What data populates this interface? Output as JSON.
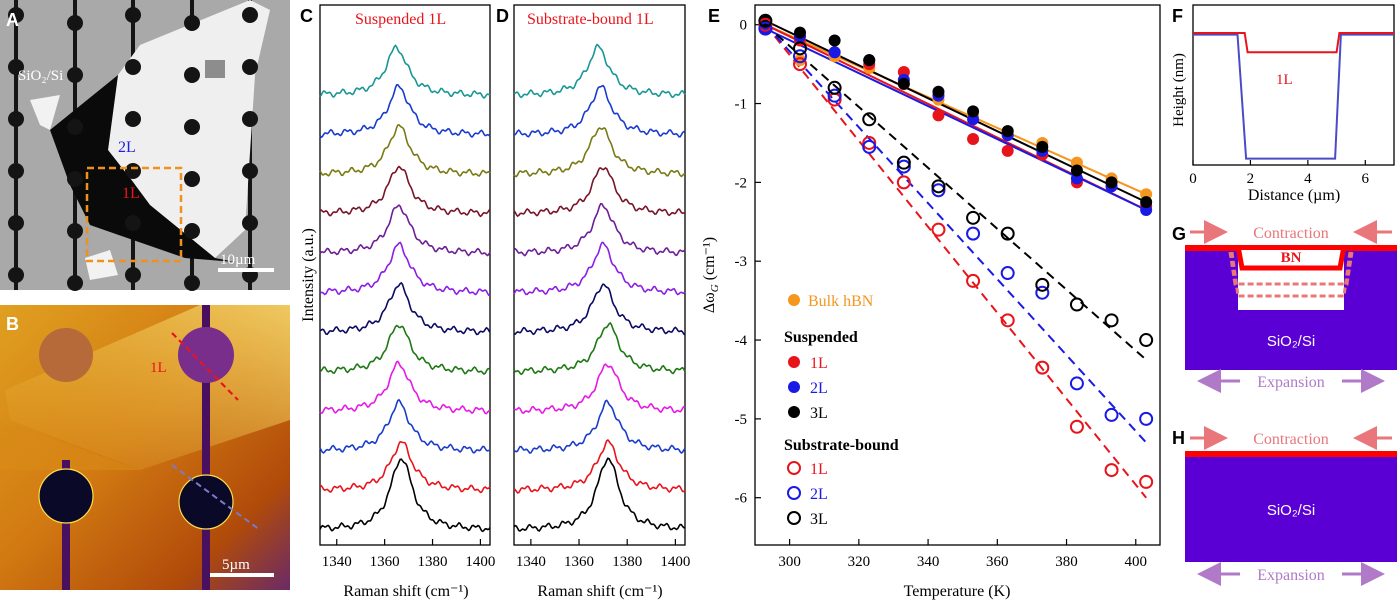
{
  "panels": {
    "A": {
      "letter": "A",
      "label_substrate": "SiO₂/Si",
      "label_2L": "2L",
      "label_1L": "1L",
      "scale": "10µm"
    },
    "B": {
      "letter": "B",
      "label_1L": "1L",
      "scale": "5µm"
    },
    "C": {
      "letter": "C",
      "title": "Suspended 1L"
    },
    "D": {
      "letter": "D",
      "title": "Substrate-bound 1L"
    },
    "E": {
      "letter": "E"
    },
    "F": {
      "letter": "F",
      "label_1L": "1L"
    },
    "G": {
      "letter": "G",
      "contraction": "Contraction",
      "bn": "BN",
      "substrate": "SiO₂/Si",
      "expansion": "Expansion"
    },
    "H": {
      "letter": "H",
      "contraction": "Contraction",
      "substrate": "SiO₂/Si",
      "expansion": "Expansion"
    }
  },
  "colors": {
    "suspended_1L": "#e8141c",
    "suspended_2L": "#1a1ae6",
    "suspended_3L": "#000000",
    "bulk": "#f5961e",
    "arrow": "#e8767a",
    "expansion_arrow": "#b07ac8",
    "substrate": "#5b00d4",
    "bn": "#ff0000"
  },
  "raman": {
    "ylabel": "Intensity (a.u.)",
    "xlabel": "Raman shift (cm⁻¹)",
    "xticks": [
      "1340",
      "1360",
      "1380",
      "1400"
    ],
    "xlim": [
      1333,
      1404
    ],
    "spectrum_colors": [
      "#000000",
      "#e8141c",
      "#1a3ccc",
      "#e61ae6",
      "#1e7814",
      "#0a0a64",
      "#8c1ee6",
      "#6e1e96",
      "#781428",
      "#7a7a14",
      "#1a3ccc",
      "#1a9696"
    ],
    "suspended_peaks": [
      1367,
      1367,
      1366,
      1366,
      1366,
      1366,
      1366,
      1366,
      1366,
      1366,
      1366,
      1365
    ],
    "bound_peaks": [
      1372,
      1372,
      1372,
      1372,
      1372,
      1370,
      1370,
      1370,
      1370,
      1369,
      1369,
      1368
    ]
  },
  "chart_data": [
    {
      "type": "scatter",
      "panel": "E",
      "xlabel": "Temperature (K)",
      "ylabel": "Δω",
      "ylabel_sub": "G",
      "ylabel_unit": " (cm⁻¹)",
      "xlim": [
        290,
        407
      ],
      "ylim": [
        -6.6,
        0.25
      ],
      "xticks": [
        300,
        320,
        340,
        360,
        380,
        400
      ],
      "yticks": [
        0,
        -1,
        -2,
        -3,
        -4,
        -5,
        -6
      ],
      "legend": {
        "bulk": "Bulk hBN",
        "suspended": "Suspended",
        "bound": "Substrate-bound",
        "1L": "1L",
        "2L": "2L",
        "3L": "3L"
      },
      "x": [
        293,
        303,
        313,
        323,
        333,
        343,
        353,
        363,
        373,
        383,
        393,
        403
      ],
      "series": [
        {
          "name": "Bulk hBN",
          "style": "filled",
          "color": "#f5961e",
          "values": [
            0.0,
            -0.45,
            -0.4,
            -0.55,
            -0.75,
            -0.95,
            -1.15,
            -1.35,
            -1.5,
            -1.75,
            -1.95,
            -2.15
          ],
          "fit": [
            0.0,
            -2.15
          ]
        },
        {
          "name": "1L",
          "group": "Suspended",
          "style": "filled",
          "color": "#e8141c",
          "values": [
            0.0,
            -0.2,
            -0.35,
            -0.5,
            -0.6,
            -1.15,
            -1.45,
            -1.6,
            -1.65,
            -2.0,
            -2.05,
            -2.3
          ],
          "fit": [
            0.0,
            -2.35
          ]
        },
        {
          "name": "2L",
          "group": "Suspended",
          "style": "filled",
          "color": "#1a1ae6",
          "values": [
            -0.05,
            -0.15,
            -0.35,
            -0.45,
            -0.7,
            -0.9,
            -1.2,
            -1.4,
            -1.6,
            -1.95,
            -2.05,
            -2.35
          ],
          "fit": [
            -0.05,
            -2.35
          ]
        },
        {
          "name": "3L",
          "group": "Suspended",
          "style": "filled",
          "color": "#000000",
          "values": [
            0.05,
            -0.1,
            -0.2,
            -0.45,
            -0.75,
            -0.85,
            -1.1,
            -1.35,
            -1.55,
            -1.85,
            -2.0,
            -2.25
          ],
          "fit": [
            0.05,
            -2.25
          ]
        },
        {
          "name": "1L",
          "group": "Substrate-bound",
          "style": "open",
          "color": "#e8141c",
          "values": [
            0.0,
            -0.5,
            -0.95,
            -1.5,
            -2.0,
            -2.6,
            -3.25,
            -3.75,
            -4.35,
            -5.1,
            -5.65,
            -5.8
          ],
          "fit": [
            0.0,
            -6.0
          ]
        },
        {
          "name": "2L",
          "group": "Substrate-bound",
          "style": "open",
          "color": "#1a1ae6",
          "values": [
            -0.05,
            -0.4,
            -0.9,
            -1.55,
            -1.8,
            -2.1,
            -2.65,
            -3.15,
            -3.4,
            -4.55,
            -4.95,
            -5.0
          ],
          "fit": [
            0.0,
            -5.3
          ]
        },
        {
          "name": "3L",
          "group": "Substrate-bound",
          "style": "open",
          "color": "#000000",
          "values": [
            0.05,
            -0.3,
            -0.8,
            -1.2,
            -1.75,
            -2.05,
            -2.45,
            -2.65,
            -3.3,
            -3.55,
            -3.75,
            -4.0
          ],
          "fit": [
            0.0,
            -4.25
          ]
        }
      ]
    },
    {
      "type": "line",
      "panel": "F",
      "xlabel": "Distance (µm)",
      "ylabel": "Height (nm)",
      "xlim": [
        0,
        7
      ],
      "xticks": [
        0,
        2,
        4,
        6
      ],
      "series": [
        {
          "name": "1L",
          "color": "#e8141c",
          "x": [
            0,
            1.8,
            1.9,
            5.0,
            5.1,
            7
          ],
          "y": [
            1.0,
            1.0,
            0.4,
            0.4,
            1.0,
            1.0
          ]
        },
        {
          "color": "#4b4bc8",
          "x": [
            0,
            1.55,
            1.85,
            4.95,
            5.15,
            7
          ],
          "y": [
            0.95,
            0.95,
            -2.9,
            -2.9,
            0.95,
            0.95
          ]
        }
      ]
    }
  ]
}
